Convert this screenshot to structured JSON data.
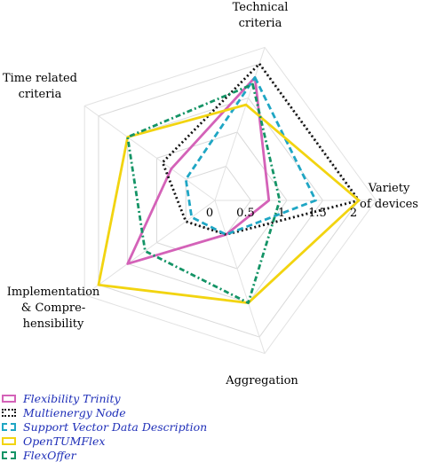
{
  "chart_data": {
    "type": "radar",
    "title": "",
    "axes": [
      {
        "label_lines": [
          "Technical",
          "criteria"
        ]
      },
      {
        "label_lines": [
          "Variety",
          "of devices"
        ]
      },
      {
        "label_lines": [
          "Aggregation"
        ]
      },
      {
        "label_lines": [
          "Implementation",
          "& Compre-",
          "hensibility"
        ]
      },
      {
        "label_lines": [
          "Time related",
          "criteria"
        ]
      }
    ],
    "rlim": [
      0,
      2
    ],
    "ticks": [
      "0",
      "0.5",
      "1",
      "1.5",
      "2"
    ],
    "tick_values": [
      0,
      0.5,
      1,
      1.5,
      2
    ],
    "grid": true,
    "legend_position": "bottom-left",
    "series": [
      {
        "name": "Flexibility Trinity",
        "color": "#d462b8",
        "dash": "solid",
        "values": [
          1.8,
          0.75,
          0.5,
          1.5,
          0.75
        ]
      },
      {
        "name": "Multienergy Node",
        "color": "#111111",
        "dash": "dotted",
        "values": [
          2.0,
          2.0,
          0.5,
          0.5,
          0.9
        ]
      },
      {
        "name": "Support Vector Data Description",
        "color": "#1fa6c4",
        "dash": "dashed",
        "values": [
          1.8,
          1.4,
          0.5,
          0.4,
          0.5
        ]
      },
      {
        "name": "OpenTUMFlex",
        "color": "#f2d410",
        "dash": "solid",
        "values": [
          1.4,
          2.0,
          1.5,
          2.0,
          1.5
        ]
      },
      {
        "name": "FlexOffer",
        "color": "#149466",
        "dash": "dashdot",
        "values": [
          1.7,
          0.9,
          1.5,
          1.2,
          1.5
        ]
      }
    ]
  }
}
